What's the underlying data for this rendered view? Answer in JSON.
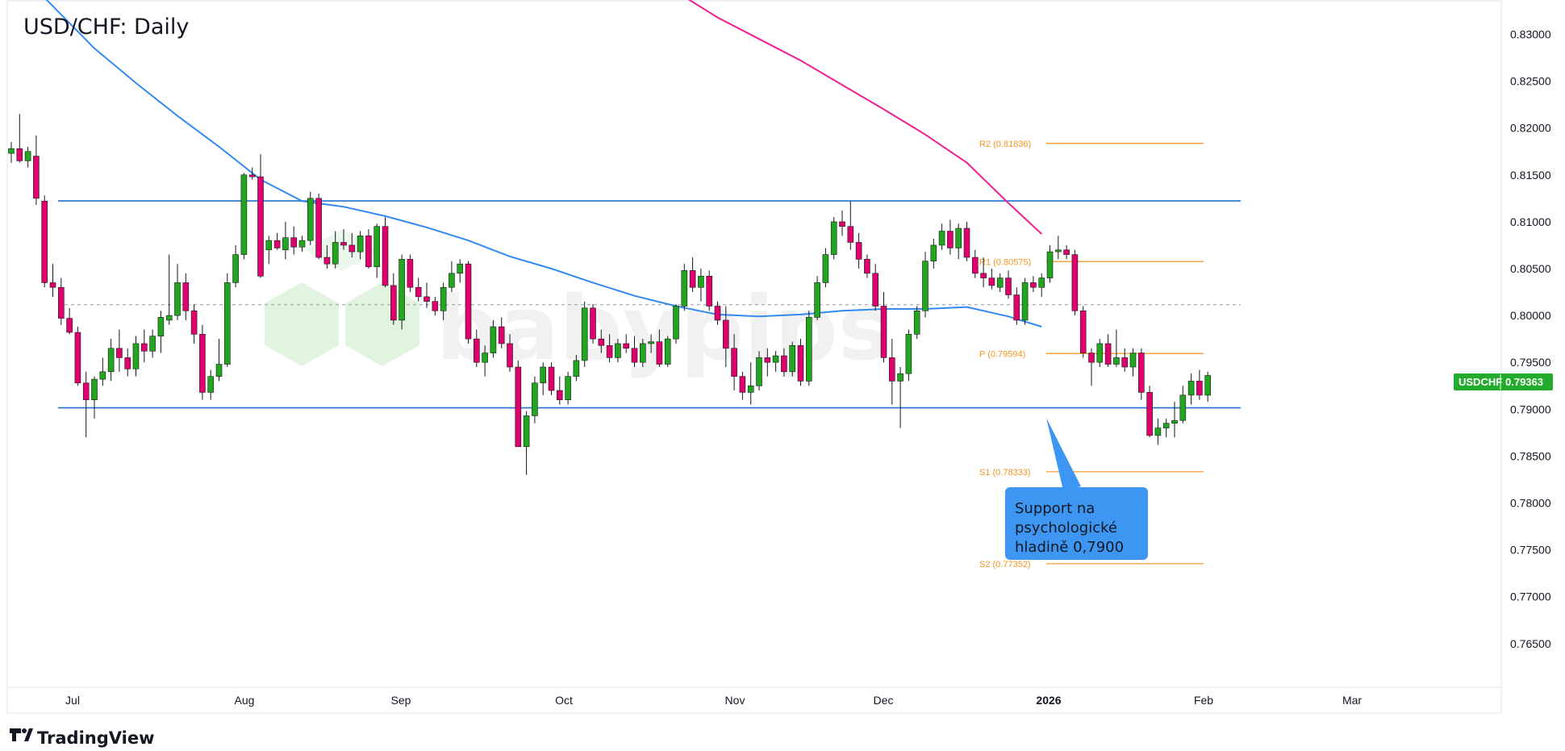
{
  "chart_data": {
    "type": "candlestick",
    "title": "USD/CHF: Daily",
    "symbol": "USDCHF",
    "last_price": "0.79363",
    "y_axis": {
      "ticks": [
        "0.83000",
        "0.82500",
        "0.82000",
        "0.81500",
        "0.81000",
        "0.80500",
        "0.80000",
        "0.79500",
        "0.79000",
        "0.78500",
        "0.78000",
        "0.77500",
        "0.77000",
        "0.76500"
      ],
      "range": [
        0.7605,
        0.8335
      ]
    },
    "x_axis": {
      "ticks": [
        "Jul",
        "Aug",
        "Sep",
        "Oct",
        "Nov",
        "Dec",
        "2026",
        "Feb",
        "Mar"
      ]
    },
    "pivots": [
      {
        "label": "R2 (0.81836)",
        "value": 0.81836
      },
      {
        "label": "R1 (0.80575)",
        "value": 0.80575
      },
      {
        "label": "P (0.79594)",
        "value": 0.79594
      },
      {
        "label": "S1 (0.78333)",
        "value": 0.78333
      },
      {
        "label": "S2 (0.77352)",
        "value": 0.77352
      }
    ],
    "range_lines": [
      0.81222,
      0.79015
    ],
    "dashed_line": 0.80115,
    "callout": {
      "lines": [
        "Support na",
        "psychologické",
        "hladině 0,7900"
      ]
    },
    "ma_blue": [
      [
        0,
        0.8375
      ],
      [
        5,
        0.833
      ],
      [
        10,
        0.8285
      ],
      [
        15,
        0.8248
      ],
      [
        20,
        0.8213
      ],
      [
        25,
        0.818
      ],
      [
        30,
        0.8145
      ],
      [
        35,
        0.8122
      ],
      [
        40,
        0.8116
      ],
      [
        45,
        0.8106
      ],
      [
        50,
        0.8094
      ],
      [
        55,
        0.808
      ],
      [
        60,
        0.8063
      ],
      [
        65,
        0.805
      ],
      [
        70,
        0.8035
      ],
      [
        75,
        0.8021
      ],
      [
        80,
        0.801
      ],
      [
        85,
        0.8001
      ],
      [
        90,
        0.7999
      ],
      [
        95,
        0.8001
      ],
      [
        100,
        0.8005
      ],
      [
        105,
        0.8007
      ],
      [
        110,
        0.8007
      ],
      [
        115,
        0.8009
      ],
      [
        120,
        0.7999
      ],
      [
        124,
        0.7988
      ]
    ],
    "ma_pink": [
      [
        81,
        0.834
      ],
      [
        85,
        0.8318
      ],
      [
        90,
        0.8295
      ],
      [
        95,
        0.8272
      ],
      [
        100,
        0.8246
      ],
      [
        105,
        0.822
      ],
      [
        110,
        0.8193
      ],
      [
        115,
        0.8163
      ],
      [
        120,
        0.812
      ],
      [
        124,
        0.8087
      ]
    ],
    "candles": [
      [
        0.8173,
        0.8185,
        0.8163,
        0.8178
      ],
      [
        0.8178,
        0.8215,
        0.8163,
        0.8165
      ],
      [
        0.8165,
        0.818,
        0.8158,
        0.8175
      ],
      [
        0.817,
        0.8192,
        0.8118,
        0.8125
      ],
      [
        0.8122,
        0.8128,
        0.803,
        0.8035
      ],
      [
        0.8035,
        0.8055,
        0.802,
        0.803
      ],
      [
        0.803,
        0.804,
        0.799,
        0.7997
      ],
      [
        0.7997,
        0.8008,
        0.798,
        0.7982
      ],
      [
        0.7982,
        0.7988,
        0.7925,
        0.7928
      ],
      [
        0.7928,
        0.794,
        0.787,
        0.791
      ],
      [
        0.791,
        0.7935,
        0.789,
        0.7932
      ],
      [
        0.7932,
        0.7955,
        0.7925,
        0.794
      ],
      [
        0.794,
        0.7975,
        0.793,
        0.7965
      ],
      [
        0.7965,
        0.7985,
        0.794,
        0.7955
      ],
      [
        0.7955,
        0.7965,
        0.7935,
        0.7943
      ],
      [
        0.7943,
        0.7978,
        0.7935,
        0.797
      ],
      [
        0.797,
        0.7985,
        0.795,
        0.7962
      ],
      [
        0.7962,
        0.7985,
        0.7955,
        0.7978
      ],
      [
        0.7978,
        0.8005,
        0.796,
        0.7998
      ],
      [
        0.7995,
        0.8065,
        0.799,
        0.8
      ],
      [
        0.8,
        0.8055,
        0.7995,
        0.8035
      ],
      [
        0.8035,
        0.8045,
        0.7995,
        0.8005
      ],
      [
        0.8005,
        0.8012,
        0.797,
        0.798
      ],
      [
        0.798,
        0.799,
        0.791,
        0.7918
      ],
      [
        0.7918,
        0.7942,
        0.791,
        0.7935
      ],
      [
        0.7935,
        0.7975,
        0.793,
        0.7948
      ],
      [
        0.7948,
        0.8045,
        0.7945,
        0.8035
      ],
      [
        0.8035,
        0.8075,
        0.803,
        0.8065
      ],
      [
        0.8065,
        0.8152,
        0.806,
        0.815
      ],
      [
        0.815,
        0.8158,
        0.8145,
        0.8148
      ],
      [
        0.8148,
        0.8172,
        0.804,
        0.8042
      ],
      [
        0.807,
        0.8085,
        0.8055,
        0.808
      ],
      [
        0.808,
        0.8088,
        0.807,
        0.8072
      ],
      [
        0.807,
        0.81,
        0.806,
        0.8083
      ],
      [
        0.8083,
        0.8095,
        0.8065,
        0.8073
      ],
      [
        0.8073,
        0.8085,
        0.8068,
        0.808
      ],
      [
        0.808,
        0.8132,
        0.8075,
        0.8125
      ],
      [
        0.8125,
        0.813,
        0.806,
        0.8062
      ],
      [
        0.8062,
        0.8075,
        0.805,
        0.8055
      ],
      [
        0.8055,
        0.809,
        0.805,
        0.8078
      ],
      [
        0.8078,
        0.8092,
        0.807,
        0.8075
      ],
      [
        0.8075,
        0.8088,
        0.8062,
        0.8068
      ],
      [
        0.8068,
        0.809,
        0.806,
        0.8085
      ],
      [
        0.8085,
        0.8092,
        0.805,
        0.8052
      ],
      [
        0.8052,
        0.8098,
        0.804,
        0.8095
      ],
      [
        0.8095,
        0.8105,
        0.803,
        0.8032
      ],
      [
        0.8032,
        0.8045,
        0.799,
        0.7995
      ],
      [
        0.7995,
        0.8065,
        0.7985,
        0.806
      ],
      [
        0.806,
        0.8065,
        0.8025,
        0.803
      ],
      [
        0.803,
        0.804,
        0.8015,
        0.802
      ],
      [
        0.802,
        0.8035,
        0.8008,
        0.8015
      ],
      [
        0.8015,
        0.802,
        0.8,
        0.8005
      ],
      [
        0.8005,
        0.8035,
        0.7995,
        0.803
      ],
      [
        0.803,
        0.8058,
        0.8025,
        0.8045
      ],
      [
        0.8045,
        0.806,
        0.8035,
        0.8055
      ],
      [
        0.8055,
        0.8058,
        0.797,
        0.7975
      ],
      [
        0.7975,
        0.7985,
        0.7945,
        0.795
      ],
      [
        0.795,
        0.7968,
        0.7935,
        0.796
      ],
      [
        0.796,
        0.7995,
        0.7955,
        0.7988
      ],
      [
        0.7988,
        0.7998,
        0.7965,
        0.797
      ],
      [
        0.797,
        0.798,
        0.794,
        0.7945
      ],
      [
        0.7945,
        0.7952,
        0.786,
        0.786
      ],
      [
        0.786,
        0.7898,
        0.783,
        0.7893
      ],
      [
        0.7893,
        0.7935,
        0.7885,
        0.7928
      ],
      [
        0.7928,
        0.795,
        0.7915,
        0.7945
      ],
      [
        0.7945,
        0.795,
        0.7915,
        0.792
      ],
      [
        0.792,
        0.7935,
        0.7905,
        0.791
      ],
      [
        0.791,
        0.794,
        0.7905,
        0.7935
      ],
      [
        0.7935,
        0.7958,
        0.793,
        0.7952
      ],
      [
        0.7952,
        0.8015,
        0.7945,
        0.8008
      ],
      [
        0.8008,
        0.8012,
        0.797,
        0.7975
      ],
      [
        0.7975,
        0.7985,
        0.796,
        0.7968
      ],
      [
        0.7968,
        0.798,
        0.795,
        0.7955
      ],
      [
        0.7955,
        0.7975,
        0.795,
        0.797
      ],
      [
        0.797,
        0.798,
        0.796,
        0.7965
      ],
      [
        0.7965,
        0.7978,
        0.7945,
        0.795
      ],
      [
        0.795,
        0.7975,
        0.7945,
        0.797
      ],
      [
        0.797,
        0.798,
        0.796,
        0.7972
      ],
      [
        0.7972,
        0.7985,
        0.7945,
        0.7948
      ],
      [
        0.7948,
        0.7978,
        0.7945,
        0.7975
      ],
      [
        0.7975,
        0.8012,
        0.797,
        0.801
      ],
      [
        0.801,
        0.8055,
        0.8005,
        0.8048
      ],
      [
        0.8048,
        0.8062,
        0.8025,
        0.803
      ],
      [
        0.803,
        0.805,
        0.8015,
        0.8042
      ],
      [
        0.8042,
        0.8048,
        0.8005,
        0.801
      ],
      [
        0.801,
        0.8015,
        0.799,
        0.7995
      ],
      [
        0.7995,
        0.801,
        0.7945,
        0.7965
      ],
      [
        0.7965,
        0.798,
        0.792,
        0.7935
      ],
      [
        0.7935,
        0.794,
        0.791,
        0.7918
      ],
      [
        0.7918,
        0.795,
        0.7905,
        0.7925
      ],
      [
        0.7925,
        0.7962,
        0.792,
        0.7955
      ],
      [
        0.7955,
        0.7965,
        0.7935,
        0.795
      ],
      [
        0.795,
        0.7962,
        0.794,
        0.7957
      ],
      [
        0.7957,
        0.7965,
        0.7935,
        0.794
      ],
      [
        0.794,
        0.7972,
        0.7935,
        0.7968
      ],
      [
        0.7968,
        0.7975,
        0.7925,
        0.793
      ],
      [
        0.793,
        0.8005,
        0.7925,
        0.7998
      ],
      [
        0.7998,
        0.8042,
        0.7995,
        0.8035
      ],
      [
        0.8035,
        0.8072,
        0.803,
        0.8065
      ],
      [
        0.8065,
        0.8105,
        0.806,
        0.81
      ],
      [
        0.81,
        0.8112,
        0.8085,
        0.8095
      ],
      [
        0.8095,
        0.8122,
        0.807,
        0.8078
      ],
      [
        0.8078,
        0.8088,
        0.805,
        0.806
      ],
      [
        0.806,
        0.8065,
        0.804,
        0.8045
      ],
      [
        0.8045,
        0.8055,
        0.8005,
        0.801
      ],
      [
        0.801,
        0.8025,
        0.795,
        0.7955
      ],
      [
        0.7955,
        0.7975,
        0.7905,
        0.793
      ],
      [
        0.793,
        0.7945,
        0.788,
        0.7938
      ],
      [
        0.7938,
        0.7985,
        0.793,
        0.798
      ],
      [
        0.798,
        0.801,
        0.7975,
        0.8005
      ],
      [
        0.8005,
        0.8068,
        0.7998,
        0.8058
      ],
      [
        0.8058,
        0.8082,
        0.805,
        0.8075
      ],
      [
        0.8075,
        0.8098,
        0.807,
        0.809
      ],
      [
        0.809,
        0.8102,
        0.8065,
        0.8072
      ],
      [
        0.8072,
        0.8098,
        0.806,
        0.8093
      ],
      [
        0.8093,
        0.81,
        0.8058,
        0.8062
      ],
      [
        0.8062,
        0.807,
        0.804,
        0.8045
      ],
      [
        0.8045,
        0.8062,
        0.803,
        0.804
      ],
      [
        0.804,
        0.805,
        0.8028,
        0.8032
      ],
      [
        0.803,
        0.8045,
        0.8025,
        0.804
      ],
      [
        0.804,
        0.8048,
        0.8018,
        0.8022
      ],
      [
        0.8022,
        0.803,
        0.799,
        0.7995
      ],
      [
        0.7995,
        0.804,
        0.799,
        0.8035
      ],
      [
        0.8035,
        0.8042,
        0.8025,
        0.803
      ],
      [
        0.803,
        0.8045,
        0.802,
        0.804
      ],
      [
        0.804,
        0.8075,
        0.8035,
        0.8068
      ],
      [
        0.8068,
        0.8085,
        0.806,
        0.807
      ],
      [
        0.807,
        0.8075,
        0.806,
        0.8065
      ],
      [
        0.8065,
        0.807,
        0.8,
        0.8005
      ],
      [
        0.8005,
        0.801,
        0.7955,
        0.796
      ],
      [
        0.796,
        0.7965,
        0.7925,
        0.795
      ],
      [
        0.795,
        0.7975,
        0.7945,
        0.797
      ],
      [
        0.797,
        0.798,
        0.7945,
        0.7948
      ],
      [
        0.7948,
        0.7985,
        0.7945,
        0.7955
      ],
      [
        0.7955,
        0.7965,
        0.794,
        0.7945
      ],
      [
        0.7945,
        0.7965,
        0.7935,
        0.796
      ],
      [
        0.796,
        0.7965,
        0.791,
        0.7918
      ],
      [
        0.7918,
        0.7925,
        0.787,
        0.7872
      ],
      [
        0.7872,
        0.789,
        0.7862,
        0.788
      ],
      [
        0.788,
        0.789,
        0.787,
        0.7885
      ],
      [
        0.7885,
        0.7908,
        0.787,
        0.7888
      ],
      [
        0.7888,
        0.7925,
        0.7885,
        0.7915
      ],
      [
        0.7915,
        0.7938,
        0.7905,
        0.793
      ],
      [
        0.793,
        0.7942,
        0.791,
        0.7915
      ],
      [
        0.7915,
        0.794,
        0.7908,
        0.7936
      ]
    ]
  },
  "footer": {
    "brand": "TradingView"
  },
  "colors": {
    "up": "#22a51f",
    "down": "#e0006d",
    "wick": "#131722",
    "ma_blue": "#3389f3",
    "ma_pink": "#ef1f8f",
    "range_line": "#1f73d6",
    "pivot": "#f7941d",
    "callout_bg": "#3d97f2",
    "price_tag": "#22ab2c"
  }
}
